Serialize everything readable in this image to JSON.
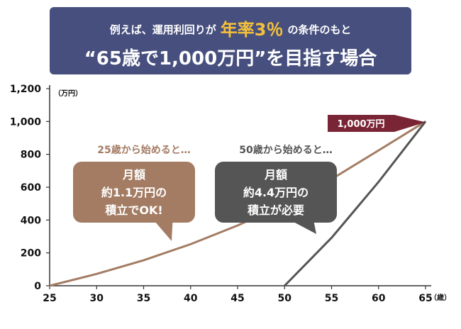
{
  "header": {
    "line1_before": "例えば、運用利回りが",
    "line1_highlight": "年率3％",
    "line1_after": "の条件のもと",
    "line2": "“65歳で1,000万円”を目指す場合",
    "colors": {
      "background": "#474f7e",
      "highlight": "#f5c13a"
    }
  },
  "chart_data": {
    "type": "line",
    "x_ticks": [
      "25",
      "30",
      "35",
      "40",
      "45",
      "50",
      "55",
      "60",
      "65"
    ],
    "y_ticks": [
      "0",
      "200",
      "400",
      "600",
      "800",
      "1,000",
      "1,200"
    ],
    "xlim": [
      25,
      65
    ],
    "ylim": [
      0,
      1200
    ],
    "x_unit": "（歳）",
    "y_unit": "（万円）",
    "grid": false,
    "series": [
      {
        "start_age": 25,
        "color": "#a37c63",
        "x": [
          25,
          30,
          35,
          40,
          45,
          50,
          55,
          60,
          65
        ],
        "y": [
          0,
          72,
          155,
          253,
          367,
          497,
          649,
          824,
          1000
        ]
      },
      {
        "start_age": 50,
        "color": "#555555",
        "x": [
          50,
          55,
          60,
          65
        ],
        "y": [
          0,
          292,
          632,
          1000
        ]
      }
    ],
    "annotations": {
      "target_flag": {
        "text": "1,000万円",
        "color": "#7a2535"
      },
      "bubble_25": {
        "lead": "25歳から始めると…",
        "lines": [
          "月額",
          "約1.1万円の",
          "積立でOK!"
        ],
        "color": "#a37c63"
      },
      "bubble_50": {
        "lead": "50歳から始めると…",
        "lines": [
          "月額",
          "約4.4万円の",
          "積立が必要"
        ],
        "color": "#555555"
      }
    }
  }
}
